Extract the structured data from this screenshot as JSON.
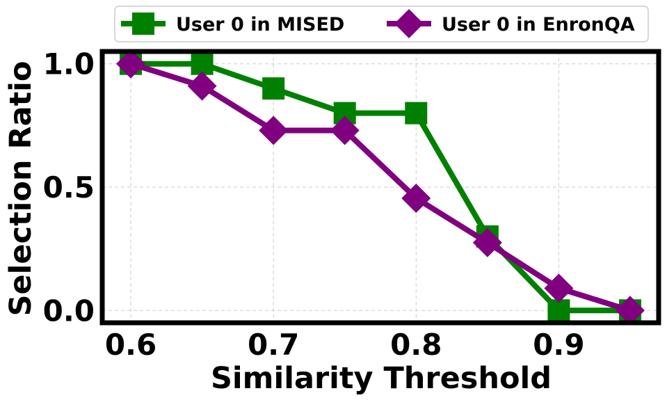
{
  "chart_data": {
    "type": "line",
    "title": "",
    "xlabel": "Similarity Threshold",
    "ylabel": "Selection Ratio",
    "x": [
      0.6,
      0.65,
      0.7,
      0.75,
      0.8,
      0.85,
      0.9,
      0.95
    ],
    "xlim": [
      0.58,
      0.97
    ],
    "ylim": [
      -0.05,
      1.05
    ],
    "x_ticks": [
      0.6,
      0.7,
      0.8,
      0.9
    ],
    "x_tick_labels": [
      "0.6",
      "0.7",
      "0.8",
      "0.9"
    ],
    "y_ticks": [
      0.0,
      0.5,
      1.0
    ],
    "y_tick_labels": [
      "0.0",
      "0.5",
      "1.0"
    ],
    "grid": true,
    "legend_position": "top-outside",
    "series": [
      {
        "name": "User 0 in MISED",
        "color": "#008000",
        "marker": "square",
        "values": [
          1.0,
          1.0,
          0.9,
          0.8,
          0.8,
          0.3,
          0.0,
          0.0
        ]
      },
      {
        "name": "User 0 in EnronQA",
        "color": "#800080",
        "marker": "diamond",
        "values": [
          1.0,
          0.91,
          0.73,
          0.73,
          0.455,
          0.275,
          0.09,
          0.0
        ]
      }
    ]
  }
}
